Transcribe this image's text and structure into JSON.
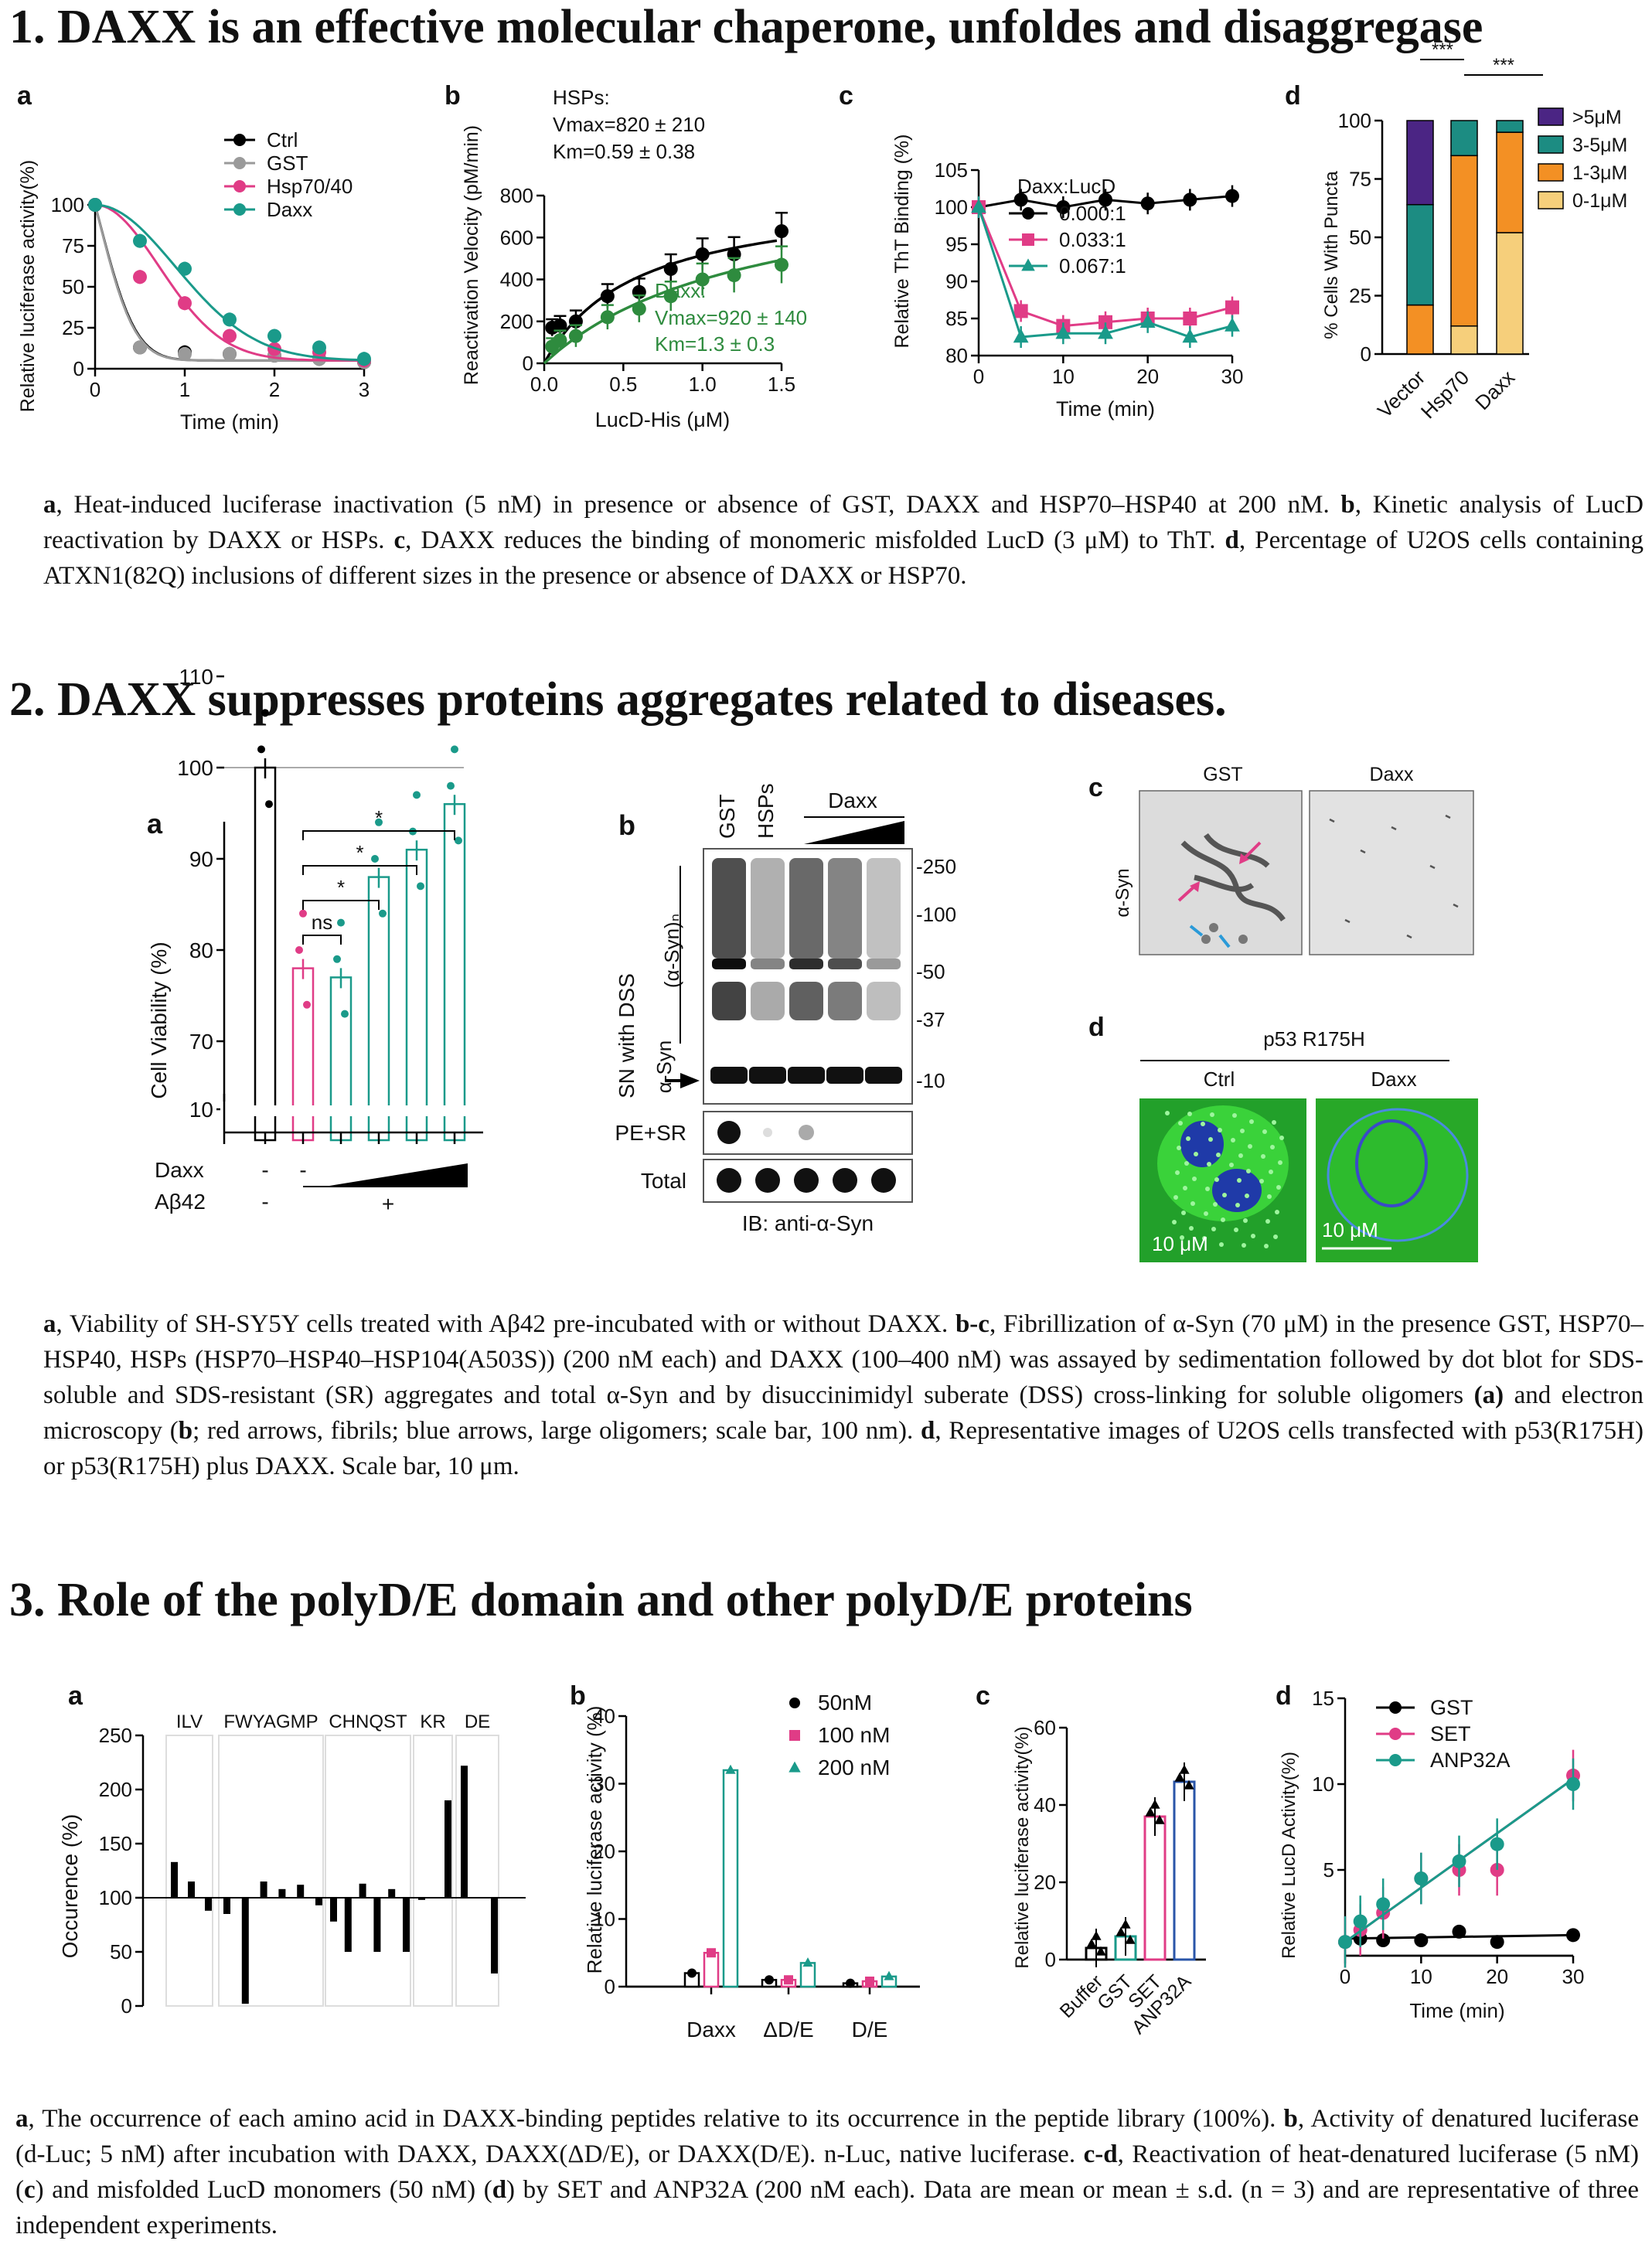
{
  "sections": [
    {
      "title": "1. DAXX is an effective molecular chaperone, unfoldes and disaggregase",
      "caption": [
        {
          "b": "a"
        },
        {
          "t": ", Heat-induced luciferase inactivation (5 nM) in presence or absence of GST, DAXX and HSP70–HSP40 at 200 nM. "
        },
        {
          "b": "b"
        },
        {
          "t": ", Kinetic analysis of LucD reactivation by DAXX or HSPs. "
        },
        {
          "b": "c"
        },
        {
          "t": ", DAXX reduces the binding of monomeric misfolded LucD (3 μM) to ThT. "
        },
        {
          "b": "d"
        },
        {
          "t": ", Percentage of U2OS cells containing ATXN1(82Q) inclusions of different sizes in the presence or absence of DAXX or HSP70."
        }
      ]
    },
    {
      "title": "2. DAXX suppresses proteins aggregates related to diseases.",
      "caption": [
        {
          "b": "a"
        },
        {
          "t": ", Viability of SH-SY5Y cells treated with Aβ42 pre-incubated with or without DAXX. "
        },
        {
          "b": "b-c"
        },
        {
          "t": ", Fibrillization of α-Syn (70 μM) in the presence GST, HSP70–HSP40, HSPs (HSP70–HSP40–HSP104(A503S)) (200 nM each) and DAXX (100–400 nM) was assayed by sedimentation followed by dot blot for SDS-soluble and SDS-resistant (SR) aggregates and total α-Syn and by disuccinimidyl suberate (DSS) cross-linking for soluble oligomers "
        },
        {
          "b": "(a)"
        },
        {
          "t": " and electron microscopy ("
        },
        {
          "b": "b"
        },
        {
          "t": "; red arrows, fibrils; blue arrows, large oligomers; scale bar, 100 nm). "
        },
        {
          "b": "d"
        },
        {
          "t": ", Representative images of U2OS cells transfected with p53(R175H) or p53(R175H) plus DAXX. Scale bar, 10 μm."
        }
      ]
    },
    {
      "title": "3. Role of the polyD/E domain and other polyD/E proteins",
      "caption": [
        {
          "b": "a"
        },
        {
          "t": ", The occurrence of each amino acid in DAXX-binding peptides relative to its occurrence in the peptide library (100%). "
        },
        {
          "b": "b"
        },
        {
          "t": ", Activity of denatured luciferase (d-Luc; 5 nM) after incubation with DAXX, DAXX(ΔD/E), or DAXX(D/E). n-Luc, native luciferase. "
        },
        {
          "b": "c-d"
        },
        {
          "t": ", Reactivation of heat-denatured luciferase (5 nM) ("
        },
        {
          "b": "c"
        },
        {
          "t": ") and misfolded LucD monomers (50 nM) ("
        },
        {
          "b": "d"
        },
        {
          "t": ") by SET and ANP32A (200 nM each). Data are mean or mean ± s.d. (n = 3) and are representative of three independent experiments."
        }
      ]
    }
  ],
  "panel_letters": {
    "s1": [
      "a",
      "b",
      "c",
      "d"
    ],
    "s2": [
      "a",
      "b",
      "c",
      "d"
    ],
    "s3": [
      "a",
      "b",
      "c",
      "d"
    ]
  },
  "micrograph_labels": {
    "c_cols": [
      "GST",
      "Daxx"
    ],
    "c_row": "α-Syn",
    "d_title": "p53 R175H",
    "d_cols": [
      "Ctrl",
      "Daxx"
    ],
    "d_scale": "10 μM"
  },
  "blot": {
    "lanes": [
      "GST",
      "HSPs"
    ],
    "daxx_label": "Daxx",
    "markers": [
      "-250",
      "-100",
      "-50",
      "-37",
      "-10"
    ],
    "left_labels": [
      "SN with DSS",
      "(α-Syn)ₙ",
      "α-Syn"
    ],
    "rows": [
      "PE+SR",
      "Total"
    ],
    "footer": "IB: anti-α-Syn"
  },
  "chart_data": [
    {
      "id": "1a",
      "type": "line",
      "xlabel": "Time (min)",
      "ylabel": "Relative luciferase activity(%)",
      "xlim": [
        0,
        3
      ],
      "ylim": [
        0,
        100
      ],
      "xticks": [
        0,
        1,
        2,
        3
      ],
      "yticks": [
        0,
        25,
        50,
        75,
        100
      ],
      "series": [
        {
          "name": "Ctrl",
          "color": "#000000",
          "x": [
            0,
            0.5,
            1,
            1.5,
            2,
            2.5,
            3
          ],
          "y": [
            100,
            13,
            10,
            9,
            8,
            6,
            4
          ]
        },
        {
          "name": "GST",
          "color": "#9a9a9a",
          "x": [
            0,
            0.5,
            1,
            1.5,
            2,
            2.5,
            3
          ],
          "y": [
            100,
            13,
            9,
            9,
            8,
            6,
            4
          ]
        },
        {
          "name": "Hsp70/40",
          "color": "#e03c86",
          "x": [
            0,
            0.5,
            1,
            1.5,
            2,
            2.5,
            3
          ],
          "y": [
            100,
            56,
            40,
            20,
            12,
            10,
            5
          ]
        },
        {
          "name": "Daxx",
          "color": "#1a9a8a",
          "x": [
            0,
            0.5,
            1,
            1.5,
            2,
            2.5,
            3
          ],
          "y": [
            100,
            78,
            61,
            30,
            20,
            13,
            6
          ]
        }
      ]
    },
    {
      "id": "1b",
      "type": "scatter",
      "xlabel": "LucD-His (μM)",
      "ylabel": "Reactivation Velocity  (pM/min)",
      "xlim": [
        0,
        1.5
      ],
      "ylim": [
        0,
        800
      ],
      "xticks": [
        0.0,
        0.5,
        1.0,
        1.5
      ],
      "yticks": [
        0,
        200,
        400,
        600,
        800
      ],
      "annotations": [
        "HSPs:",
        "Vmax=820 ± 210",
        "Km=0.59 ± 0.38",
        "Daxx:",
        "Vmax=920 ± 140",
        "Km=1.3 ± 0.3"
      ],
      "series": [
        {
          "name": "HSPs",
          "color": "#000000",
          "x": [
            0.05,
            0.1,
            0.2,
            0.4,
            0.6,
            0.8,
            1.0,
            1.2,
            1.5
          ],
          "y": [
            170,
            180,
            200,
            320,
            340,
            450,
            520,
            520,
            630
          ]
        },
        {
          "name": "Daxx",
          "color": "#2e8b3e",
          "x": [
            0.05,
            0.1,
            0.2,
            0.4,
            0.6,
            0.8,
            1.0,
            1.2,
            1.5
          ],
          "y": [
            80,
            110,
            130,
            220,
            260,
            320,
            400,
            420,
            470
          ]
        }
      ]
    },
    {
      "id": "1c",
      "type": "line",
      "xlabel": "Time (min)",
      "ylabel": "Relative ThT Binding (%)",
      "xlim": [
        0,
        30
      ],
      "ylim": [
        80,
        105
      ],
      "xticks": [
        0,
        10,
        20,
        30
      ],
      "yticks": [
        80,
        85,
        90,
        95,
        100,
        105
      ],
      "legend_title": "Daxx:LucD",
      "series": [
        {
          "name": "0.000:1",
          "color": "#000000",
          "x": [
            0,
            5,
            10,
            15,
            20,
            25,
            30
          ],
          "y": [
            100,
            101,
            100,
            101,
            100.5,
            101,
            101.5
          ]
        },
        {
          "name": "0.033:1",
          "color": "#e03c86",
          "x": [
            0,
            5,
            10,
            15,
            20,
            25,
            30
          ],
          "y": [
            100,
            86,
            84,
            84.5,
            85,
            85,
            86.5
          ]
        },
        {
          "name": "0.067:1",
          "color": "#1a9a8a",
          "x": [
            0,
            5,
            10,
            15,
            20,
            25,
            30
          ],
          "y": [
            100,
            82.5,
            83,
            83,
            84.5,
            82.5,
            84
          ]
        }
      ]
    },
    {
      "id": "1d",
      "type": "bar",
      "ylabel": "% Cells With Puncta",
      "categories": [
        "Vector",
        "Hsp70",
        "Daxx"
      ],
      "ylim": [
        0,
        100
      ],
      "yticks": [
        0,
        25,
        50,
        75,
        100
      ],
      "significance": [
        "***",
        "***"
      ],
      "series": [
        {
          "name": "0-1μM",
          "color": "#f6cf7b",
          "values": [
            0,
            12,
            52
          ]
        },
        {
          "name": "1-3μM",
          "color": "#f39024",
          "values": [
            21,
            73,
            43
          ]
        },
        {
          "name": "3-5μM",
          "color": "#1c8c82",
          "values": [
            43,
            15,
            5
          ]
        },
        {
          "name": ">5μM",
          "color": "#4b2584",
          "values": [
            36,
            0,
            0
          ]
        }
      ]
    },
    {
      "id": "2a",
      "type": "bar",
      "ylabel": "Cell Viability (%)",
      "categories": [
        "1",
        "2",
        "3",
        "4",
        "5",
        "6"
      ],
      "yticks": [
        10,
        70,
        80,
        90,
        100,
        110
      ],
      "row_labels": [
        "Daxx",
        "Aβ42"
      ],
      "row_values": [
        [
          "-",
          "-",
          "",
          "",
          "",
          ""
        ],
        [
          "-",
          "",
          "",
          "+",
          "",
          ""
        ]
      ],
      "significance": [
        "ns",
        "*",
        "*",
        "*"
      ],
      "values": [
        100,
        78,
        77,
        88,
        91,
        96
      ],
      "colors": [
        "#000000",
        "#e03c86",
        "#1a9a8a",
        "#1a9a8a",
        "#1a9a8a",
        "#1a9a8a"
      ]
    },
    {
      "id": "3a",
      "type": "bar",
      "ylabel": "Occurence (%)",
      "groups": [
        "ILV",
        "FWYAGMP",
        "CHNQST",
        "KR",
        "DE"
      ],
      "ylim": [
        0,
        250
      ],
      "yticks": [
        0,
        50,
        100,
        150,
        200,
        250
      ],
      "values": [
        133,
        115,
        88,
        85,
        2,
        115,
        108,
        112,
        93,
        78,
        50,
        113,
        50,
        108,
        50,
        98,
        190,
        222,
        30,
        35
      ]
    },
    {
      "id": "3b",
      "type": "bar",
      "ylabel": "Relative luciferase activity (%)",
      "categories": [
        "Daxx",
        "ΔD/E",
        "D/E"
      ],
      "ylim": [
        0,
        40
      ],
      "yticks": [
        0,
        10,
        20,
        30,
        40
      ],
      "series": [
        {
          "name": "50nM",
          "color": "#000000",
          "values": [
            2,
            1,
            0.5
          ]
        },
        {
          "name": "100 nM",
          "color": "#e03c86",
          "values": [
            5,
            1,
            0.8
          ]
        },
        {
          "name": "200 nM",
          "color": "#1a9a8a",
          "values": [
            32,
            3.5,
            1.5
          ]
        }
      ]
    },
    {
      "id": "3c",
      "type": "bar",
      "ylabel": "Relative luciferase activity(%)",
      "categories": [
        "Buffer",
        "GST",
        "SET",
        "ANP32A"
      ],
      "ylim": [
        0,
        60
      ],
      "yticks": [
        0,
        20,
        40,
        60
      ],
      "values": [
        3,
        6,
        37,
        46
      ],
      "colors": [
        "#000000",
        "#1a9a8a",
        "#e03c86",
        "#2a55a8"
      ]
    },
    {
      "id": "3d",
      "type": "line",
      "xlabel": "Time (min)",
      "ylabel": "Relative LucD Activity(%)",
      "xlim": [
        0,
        30
      ],
      "ylim": [
        0,
        15
      ],
      "xticks": [
        0,
        10,
        20,
        30
      ],
      "yticks": [
        5,
        10,
        15
      ],
      "series": [
        {
          "name": "GST",
          "color": "#000000",
          "x": [
            0,
            2,
            5,
            10,
            15,
            20,
            30
          ],
          "y": [
            0.8,
            1,
            0.9,
            0.9,
            1.4,
            0.8,
            1.2
          ]
        },
        {
          "name": "SET",
          "color": "#e03c86",
          "x": [
            0,
            2,
            5,
            10,
            15,
            20,
            30
          ],
          "y": [
            0.8,
            1.5,
            2.5,
            4.5,
            5,
            5,
            10.5
          ]
        },
        {
          "name": "ANP32A",
          "color": "#1a9a8a",
          "x": [
            0,
            2,
            5,
            10,
            15,
            20,
            30
          ],
          "y": [
            0.8,
            2,
            3,
            4.5,
            5.5,
            6.5,
            10
          ]
        }
      ]
    }
  ]
}
